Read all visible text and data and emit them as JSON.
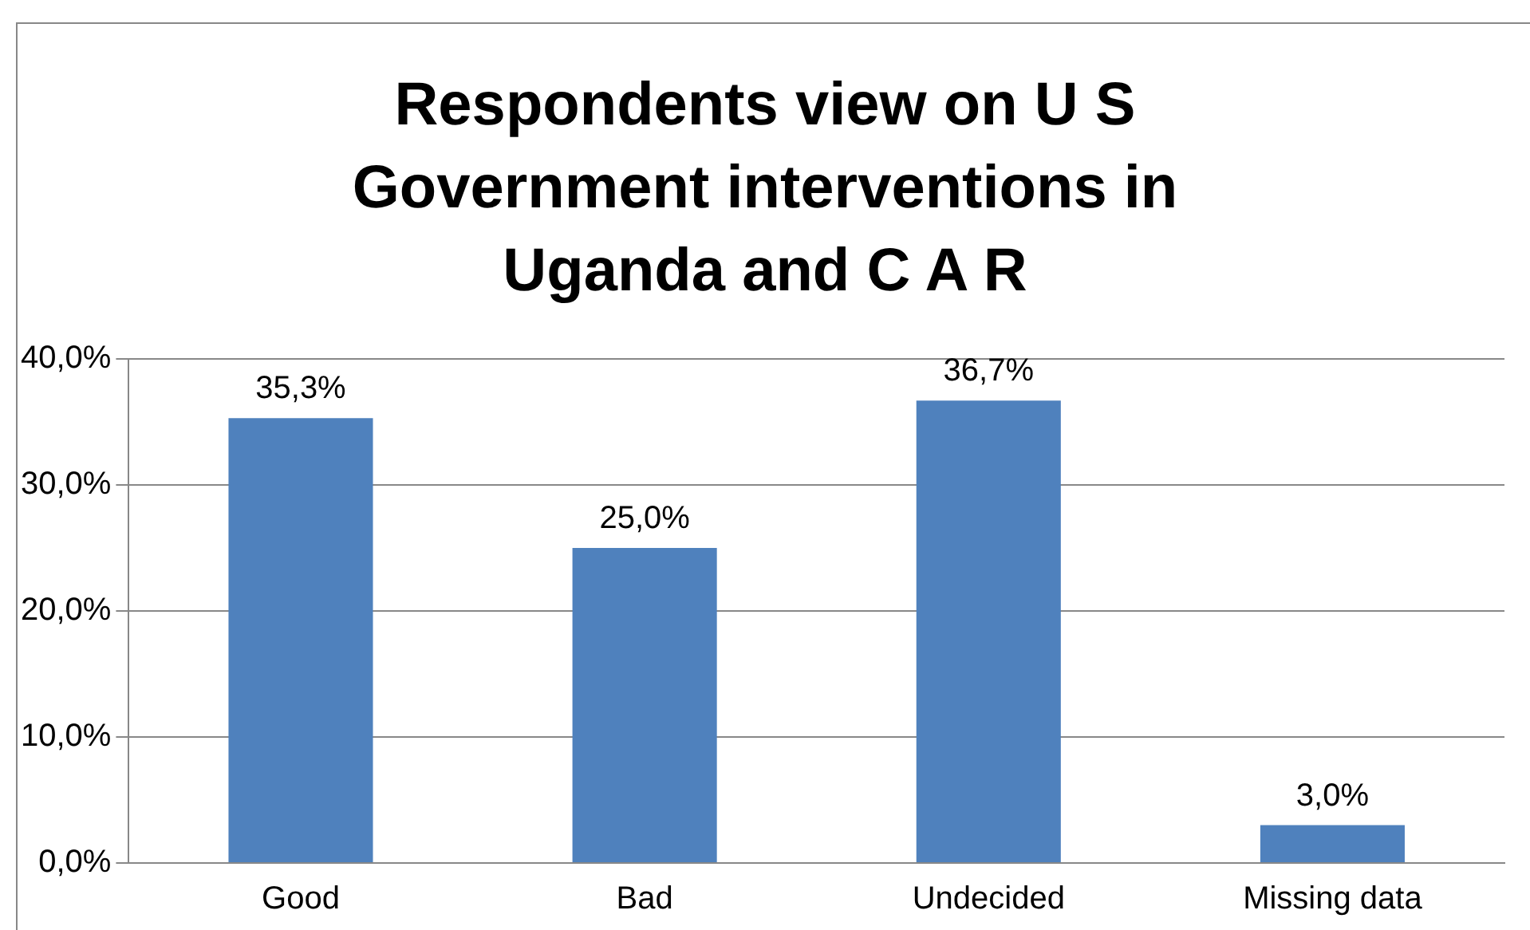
{
  "chart_data": {
    "type": "bar",
    "title": "Respondents view on U S Government interventions in Uganda and C A R",
    "categories": [
      "Good",
      "Bad",
      "Undecided",
      "Missing data"
    ],
    "values": [
      35.3,
      25.0,
      36.7,
      3.0
    ],
    "value_labels": [
      "35,3%",
      "25,0%",
      "36,7%",
      "3,0%"
    ],
    "color": "#4f81bd",
    "ylim": [
      0,
      40
    ],
    "yticks": [
      {
        "value": 0,
        "label": "0,0%"
      },
      {
        "value": 10,
        "label": "10,0%"
      },
      {
        "value": 20,
        "label": "20,0%"
      },
      {
        "value": 30,
        "label": "30,0%"
      },
      {
        "value": 40,
        "label": "40,0%"
      }
    ],
    "grid": "y",
    "legend": false
  }
}
